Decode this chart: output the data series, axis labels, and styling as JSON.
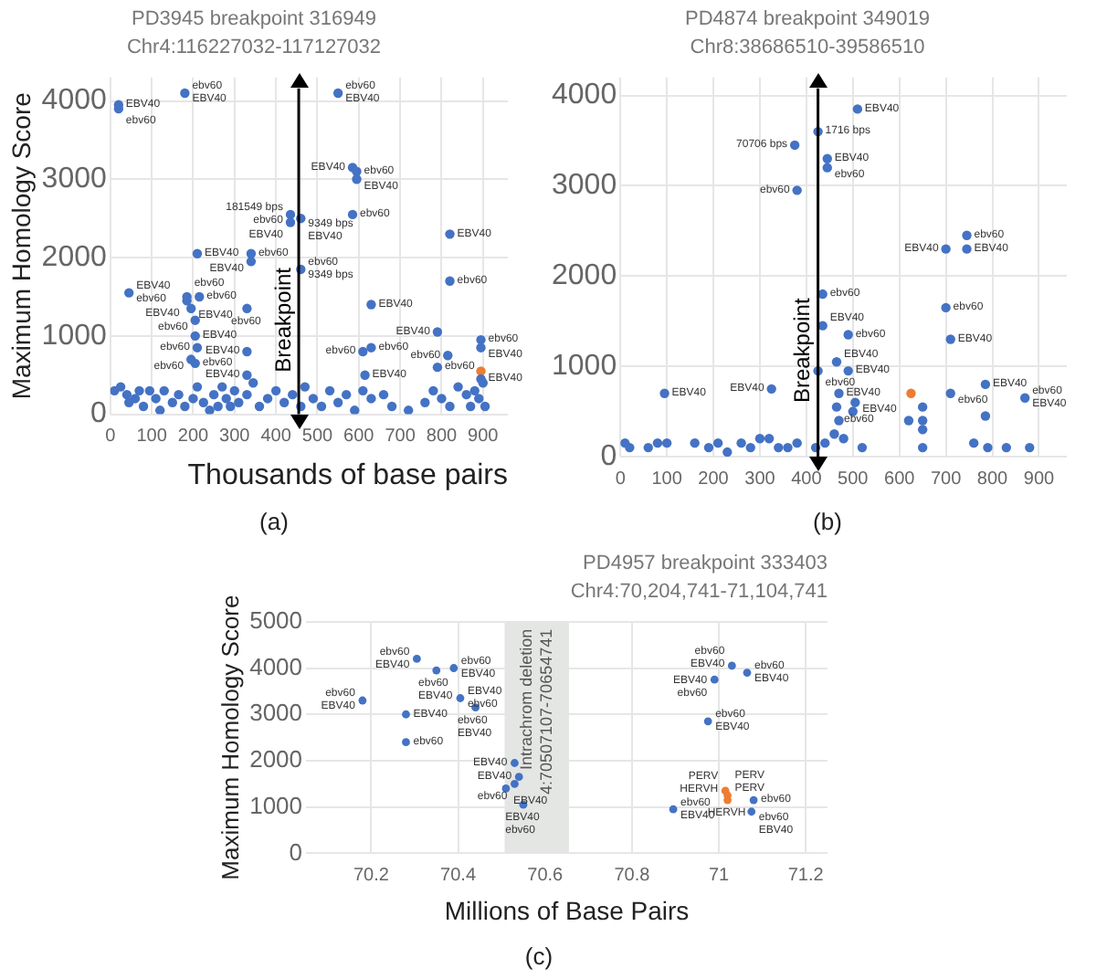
{
  "chart_data": [
    {
      "type": "scatter",
      "title": "PD3945 breakpoint 316949",
      "subtitle": "Chr4:116227032-117127032",
      "xlabel": "Thousands of base pairs",
      "ylabel": "Maximum Homology Score",
      "xlim": [
        0,
        960
      ],
      "ylim": [
        0,
        4300
      ],
      "xticks": [
        0,
        100,
        200,
        300,
        400,
        500,
        600,
        700,
        800,
        900
      ],
      "yticks": [
        0,
        1000,
        2000,
        3000,
        4000
      ],
      "grid": true,
      "marker": "circle",
      "series": [
        {
          "color": "#4472c4",
          "x": [
            20,
            20,
            180,
            550,
            585,
            595,
            595,
            435,
            460,
            435,
            585,
            820,
            210,
            340,
            340,
            460,
            820,
            45,
            185,
            185,
            215,
            195,
            205,
            205,
            210,
            195,
            205,
            330,
            630,
            330,
            330,
            630,
            610,
            615,
            790,
            815,
            790,
            895,
            895,
            895,
            10,
            25,
            40,
            45,
            60,
            70,
            80,
            95,
            110,
            120,
            130,
            150,
            165,
            180,
            200,
            210,
            225,
            240,
            250,
            260,
            270,
            280,
            290,
            300,
            310,
            330,
            345,
            360,
            380,
            400,
            420,
            440,
            460,
            470,
            490,
            510,
            530,
            550,
            570,
            590,
            610,
            630,
            660,
            680,
            720,
            760,
            780,
            800,
            820,
            840,
            860,
            870,
            880,
            890,
            900,
            905
          ],
          "values": [
            3950,
            3900,
            4100,
            4100,
            3150,
            3100,
            3000,
            2550,
            2500,
            2450,
            2550,
            2300,
            2050,
            2050,
            1950,
            1850,
            1700,
            1550,
            1500,
            1450,
            1500,
            1350,
            1200,
            1000,
            850,
            700,
            650,
            1350,
            1400,
            800,
            500,
            850,
            800,
            500,
            1050,
            750,
            600,
            950,
            850,
            450,
            300,
            350,
            250,
            150,
            200,
            300,
            100,
            300,
            200,
            50,
            300,
            150,
            250,
            100,
            200,
            350,
            150,
            50,
            250,
            100,
            350,
            200,
            100,
            300,
            150,
            250,
            400,
            100,
            200,
            300,
            150,
            250,
            100,
            350,
            200,
            100,
            300,
            150,
            250,
            50,
            300,
            200,
            250,
            100,
            50,
            150,
            300,
            200,
            100,
            350,
            250,
            100,
            300,
            200,
            400,
            100
          ]
        },
        {
          "color": "#ed7d31",
          "x": [
            895
          ],
          "values": [
            550
          ]
        }
      ],
      "ref_lines": [
        {
          "axis": "x",
          "value": 455,
          "label": "Breakpoint",
          "color": "#000000"
        }
      ],
      "annotations": [
        "(a)",
        {
          "text": "EBV40",
          "x": 20,
          "y": 3950
        },
        {
          "text": "ebv60",
          "x": 20,
          "y": 3900
        },
        {
          "text": "ebv60",
          "x": 180,
          "y": 4100
        },
        {
          "text": "EBV40",
          "x": 180,
          "y": 4100
        },
        {
          "text": "ebv60",
          "x": 550,
          "y": 4100
        },
        {
          "text": "EBV40",
          "x": 550,
          "y": 4100
        },
        {
          "text": "EBV40",
          "x": 585,
          "y": 3150
        },
        {
          "text": "ebv60",
          "x": 595,
          "y": 3100
        },
        {
          "text": "EBV40",
          "x": 595,
          "y": 3000
        },
        {
          "text": "181549 bps",
          "x": 435,
          "y": 2550
        },
        {
          "text": "ebv60",
          "x": 435,
          "y": 2550
        },
        {
          "text": "9349 bps",
          "x": 460,
          "y": 2500
        },
        {
          "text": "EBV40",
          "x": 460,
          "y": 2500
        },
        {
          "text": "EBV40",
          "x": 435,
          "y": 2450
        },
        {
          "text": "ebv60",
          "x": 585,
          "y": 2550
        },
        {
          "text": "EBV40",
          "x": 820,
          "y": 2300
        },
        {
          "text": "EBV40",
          "x": 210,
          "y": 2050
        },
        {
          "text": "ebv60",
          "x": 340,
          "y": 2050
        },
        {
          "text": "EBV40",
          "x": 340,
          "y": 1950
        },
        {
          "text": "ebv60",
          "x": 460,
          "y": 1850
        },
        {
          "text": "9349 bps",
          "x": 460,
          "y": 1850
        },
        {
          "text": "ebv60",
          "x": 820,
          "y": 1700
        },
        {
          "text": "EBV40",
          "x": 45,
          "y": 1550
        },
        {
          "text": "ebv60",
          "x": 45,
          "y": 1550
        },
        {
          "text": "ebv60",
          "x": 185,
          "y": 1500
        },
        {
          "text": "EBV40",
          "x": 185,
          "y": 1450
        },
        {
          "text": "ebv60",
          "x": 215,
          "y": 1500
        },
        {
          "text": "EBV40",
          "x": 195,
          "y": 1350
        },
        {
          "text": "ebv60",
          "x": 205,
          "y": 1200
        },
        {
          "text": "EBV40",
          "x": 205,
          "y": 1000
        },
        {
          "text": "ebv60",
          "x": 210,
          "y": 850
        },
        {
          "text": "ebv60",
          "x": 195,
          "y": 700
        },
        {
          "text": "ebv60",
          "x": 205,
          "y": 650
        },
        {
          "text": "ebv60",
          "x": 330,
          "y": 1350
        },
        {
          "text": "EBV40",
          "x": 630,
          "y": 1400
        },
        {
          "text": "EBV40",
          "x": 330,
          "y": 800
        },
        {
          "text": "EBV40",
          "x": 330,
          "y": 500
        },
        {
          "text": "ebv60",
          "x": 630,
          "y": 850
        },
        {
          "text": "ebv60",
          "x": 610,
          "y": 800
        },
        {
          "text": "EBV40",
          "x": 615,
          "y": 500
        },
        {
          "text": "EBV40",
          "x": 790,
          "y": 1050
        },
        {
          "text": "ebv60",
          "x": 815,
          "y": 750
        },
        {
          "text": "ebv60",
          "x": 790,
          "y": 600
        },
        {
          "text": "ebv60",
          "x": 895,
          "y": 950
        },
        {
          "text": "EBV40",
          "x": 895,
          "y": 850
        },
        {
          "text": "EBV40",
          "x": 895,
          "y": 450
        }
      ]
    },
    {
      "type": "scatter",
      "title": "PD4874 breakpoint 349019",
      "subtitle": "Chr8:38686510-39586510",
      "xlim": [
        0,
        960
      ],
      "ylim": [
        0,
        4200
      ],
      "xticks": [
        0,
        100,
        200,
        300,
        400,
        500,
        600,
        700,
        800,
        900
      ],
      "yticks": [
        0,
        1000,
        2000,
        3000,
        4000
      ],
      "grid": true,
      "marker": "circle",
      "series": [
        {
          "color": "#4472c4",
          "x": [
            510,
            425,
            375,
            445,
            445,
            380,
            435,
            435,
            425,
            490,
            465,
            490,
            470,
            465,
            505,
            95,
            325,
            700,
            745,
            745,
            700,
            710,
            710,
            785,
            870,
            785,
            10,
            20,
            60,
            80,
            100,
            160,
            190,
            210,
            230,
            260,
            280,
            300,
            320,
            340,
            360,
            380,
            420,
            440,
            460,
            470,
            480,
            500,
            520,
            620,
            650,
            650,
            650,
            650,
            760,
            790,
            830,
            880
          ],
          "values": [
            3850,
            3600,
            3450,
            3300,
            3200,
            2950,
            1800,
            1450,
            950,
            1350,
            1050,
            950,
            700,
            550,
            600,
            700,
            750,
            2300,
            2450,
            2300,
            1650,
            1300,
            700,
            800,
            650,
            450,
            150,
            100,
            100,
            150,
            150,
            150,
            100,
            150,
            50,
            150,
            100,
            200,
            200,
            100,
            100,
            150,
            100,
            150,
            250,
            400,
            200,
            500,
            100,
            400,
            300,
            400,
            550,
            100,
            150,
            100,
            100,
            100
          ]
        },
        {
          "color": "#ed7d31",
          "x": [
            625
          ],
          "values": [
            700
          ]
        }
      ],
      "ref_lines": [
        {
          "axis": "x",
          "value": 425,
          "label": "Breakpoint",
          "color": "#000000"
        }
      ],
      "annotations": [
        "(b)",
        {
          "text": "EBV40",
          "x": 510,
          "y": 3850
        },
        {
          "text": "1716 bps",
          "x": 425,
          "y": 3600
        },
        {
          "text": "70706 bps",
          "x": 375,
          "y": 3450
        },
        {
          "text": "EBV40",
          "x": 445,
          "y": 3300
        },
        {
          "text": "ebv60",
          "x": 445,
          "y": 3200
        },
        {
          "text": "ebv60",
          "x": 380,
          "y": 2950
        },
        {
          "text": "ebv60",
          "x": 435,
          "y": 1800
        },
        {
          "text": "EBV40",
          "x": 435,
          "y": 1450
        },
        {
          "text": "ebv60",
          "x": 490,
          "y": 1350
        },
        {
          "text": "ebv60",
          "x": 425,
          "y": 950
        },
        {
          "text": "EBV40",
          "x": 465,
          "y": 1050
        },
        {
          "text": "EBV40",
          "x": 490,
          "y": 950
        },
        {
          "text": "EBV40",
          "x": 470,
          "y": 700
        },
        {
          "text": "ebv60",
          "x": 465,
          "y": 550
        },
        {
          "text": "EBV40",
          "x": 505,
          "y": 600
        },
        {
          "text": "EBV40",
          "x": 95,
          "y": 700
        },
        {
          "text": "EBV40",
          "x": 325,
          "y": 750
        },
        {
          "text": "EBV40",
          "x": 700,
          "y": 2300
        },
        {
          "text": "ebv60",
          "x": 745,
          "y": 2450
        },
        {
          "text": "EBV40",
          "x": 745,
          "y": 2300
        },
        {
          "text": "ebv60",
          "x": 700,
          "y": 1650
        },
        {
          "text": "EBV40",
          "x": 710,
          "y": 1300
        },
        {
          "text": "ebv60",
          "x": 710,
          "y": 700
        },
        {
          "text": "EBV40",
          "x": 785,
          "y": 800
        },
        {
          "text": "ebv60",
          "x": 870,
          "y": 650
        },
        {
          "text": "EBV40",
          "x": 870,
          "y": 650
        }
      ]
    },
    {
      "type": "scatter",
      "title": "PD4957 breakpoint 333403",
      "subtitle": "Chr4:70,204,741-71,104,741",
      "xlabel": "Millions of Base Pairs",
      "ylabel": "Maximum Homology Score",
      "xlim": [
        70.05,
        71.25
      ],
      "ylim": [
        0,
        5000
      ],
      "xticks": [
        70.2,
        70.4,
        70.6,
        70.8,
        71.0,
        71.2
      ],
      "yticks": [
        0,
        1000,
        2000,
        3000,
        4000,
        5000
      ],
      "grid": true,
      "marker": "circle",
      "series": [
        {
          "color": "#4472c4",
          "x": [
            70.18,
            70.305,
            70.35,
            70.39,
            70.28,
            70.28,
            70.405,
            70.44,
            70.53,
            70.54,
            70.53,
            70.51,
            70.55,
            71.03,
            71.065,
            70.99,
            70.975,
            70.895,
            71.08,
            71.075
          ],
          "values": [
            3300,
            4200,
            3950,
            4000,
            3000,
            2400,
            3350,
            3150,
            1950,
            1650,
            1500,
            1400,
            1050,
            4050,
            3900,
            3750,
            2850,
            950,
            1150,
            900
          ]
        },
        {
          "color": "#ed7d31",
          "x": [
            71.015,
            71.02,
            71.02
          ],
          "values": [
            1350,
            1250,
            1150
          ]
        }
      ],
      "bands": [
        {
          "axis": "x",
          "from": 70.507,
          "to": 70.655,
          "label": "Intrachrom deletion 4:70507107-70654741",
          "color": "#e4e6e4"
        }
      ],
      "annotations": [
        "(c)",
        {
          "text": "ebv60",
          "x": 70.18,
          "y": 3300
        },
        {
          "text": "EBV40",
          "x": 70.18,
          "y": 3300
        },
        {
          "text": "ebv60",
          "x": 70.305,
          "y": 4200
        },
        {
          "text": "EBV40",
          "x": 70.305,
          "y": 4200
        },
        {
          "text": "ebv60",
          "x": 70.35,
          "y": 3950
        },
        {
          "text": "EBV40",
          "x": 70.35,
          "y": 3950
        },
        {
          "text": "ebv60",
          "x": 70.39,
          "y": 4000
        },
        {
          "text": "EBV40",
          "x": 70.39,
          "y": 4000
        },
        {
          "text": "EBV40",
          "x": 70.28,
          "y": 3000
        },
        {
          "text": "ebv60",
          "x": 70.28,
          "y": 2400
        },
        {
          "text": "EBV40",
          "x": 70.405,
          "y": 3350
        },
        {
          "text": "ebv60",
          "x": 70.405,
          "y": 3350
        },
        {
          "text": "ebv60",
          "x": 70.44,
          "y": 3150
        },
        {
          "text": "EBV40",
          "x": 70.44,
          "y": 3150
        },
        {
          "text": "EBV40",
          "x": 70.53,
          "y": 1950
        },
        {
          "text": "EBV40",
          "x": 70.54,
          "y": 1650
        },
        {
          "text": "ebv60",
          "x": 70.53,
          "y": 1500
        },
        {
          "text": "EBV40",
          "x": 70.51,
          "y": 1400
        },
        {
          "text": "EBV40",
          "x": 70.55,
          "y": 1050
        },
        {
          "text": "ebv60",
          "x": 70.55,
          "y": 1050
        },
        {
          "text": "ebv60",
          "x": 71.03,
          "y": 4050
        },
        {
          "text": "EBV40",
          "x": 71.03,
          "y": 4050
        },
        {
          "text": "ebv60",
          "x": 71.065,
          "y": 3900
        },
        {
          "text": "EBV40",
          "x": 71.065,
          "y": 3900
        },
        {
          "text": "EBV40",
          "x": 70.99,
          "y": 3750
        },
        {
          "text": "ebv60",
          "x": 70.99,
          "y": 3750
        },
        {
          "text": "ebv60",
          "x": 70.975,
          "y": 2850
        },
        {
          "text": "EBV40",
          "x": 70.975,
          "y": 2850
        },
        {
          "text": "ebv60",
          "x": 70.895,
          "y": 950
        },
        {
          "text": "EBV40",
          "x": 70.895,
          "y": 950
        },
        {
          "text": "ebv60",
          "x": 71.08,
          "y": 1150
        },
        {
          "text": "ebv60",
          "x": 71.075,
          "y": 900
        },
        {
          "text": "EBV40",
          "x": 71.075,
          "y": 900
        },
        {
          "text": "PERV",
          "x": 71.015,
          "y": 1350
        },
        {
          "text": "HERVH",
          "x": 71.015,
          "y": 1350
        },
        {
          "text": "PERV",
          "x": 71.02,
          "y": 1250
        },
        {
          "text": "PERV",
          "x": 71.02,
          "y": 1250
        },
        {
          "text": "HERVH",
          "x": 71.02,
          "y": 1150
        }
      ]
    }
  ]
}
